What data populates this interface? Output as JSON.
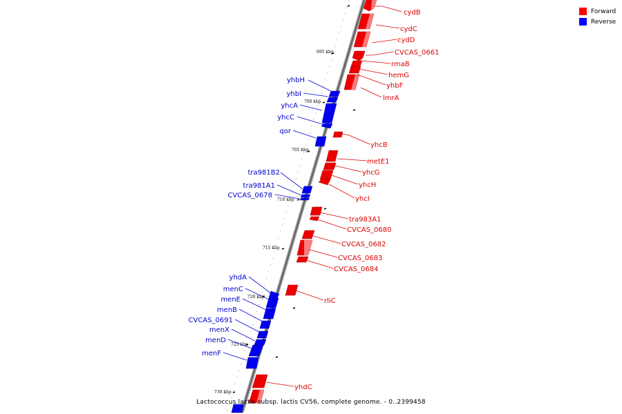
{
  "legend": {
    "forward_label": "Forward",
    "forward_color": "#ff0000",
    "reverse_label": "Reverse",
    "reverse_color": "#0000ff"
  },
  "footer": "Lactococcus lactis subsp. lactis CV56, complete genome. - 0..2399458",
  "ticks": [
    "695 kbp",
    "700 kbp",
    "705 kbp",
    "710 kbp",
    "715 kbp",
    "720 kbp",
    "725 kbp",
    "730 kbp"
  ],
  "forward_genes": [
    "cydB",
    "cydC",
    "cydD",
    "CVCAS_0661",
    "rmaB",
    "hemG",
    "yhbF",
    "lmrA",
    "yhcB",
    "metE1",
    "yhcG",
    "yhcH",
    "yhcI",
    "tra983A1",
    "CVCAS_0680",
    "CVCAS_0682",
    "CVCAS_0683",
    "CVCAS_0684",
    "rliC",
    "yhdC"
  ],
  "reverse_genes": [
    "yhbH",
    "yhbI",
    "yhcA",
    "yhcC",
    "qor",
    "tra981B2",
    "tra981A1",
    "CVCAS_0678",
    "yhdA",
    "menC",
    "menE",
    "menB",
    "CVCAS_0691",
    "menX",
    "menD",
    "menF"
  ]
}
